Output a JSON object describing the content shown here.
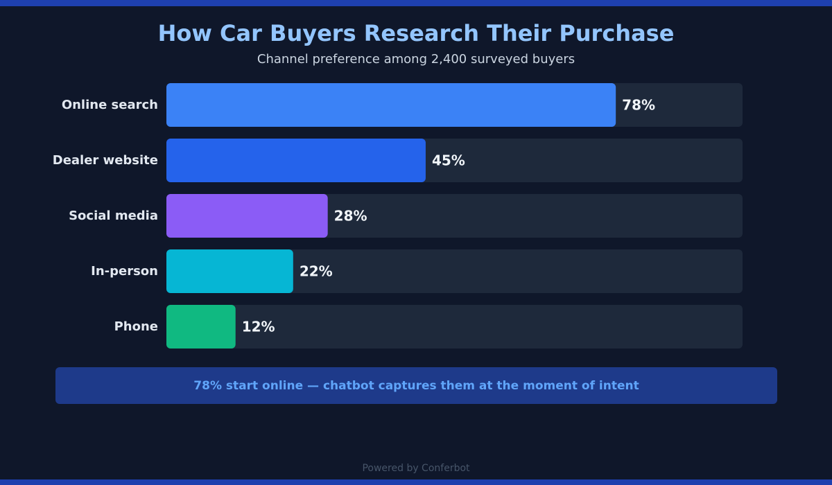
{
  "chart_data": {
    "type": "bar",
    "orientation": "horizontal",
    "title": "How Car Buyers Research Their Purchase",
    "subtitle": "Channel preference among 2,400 surveyed buyers",
    "categories": [
      "Online search",
      "Dealer website",
      "Social media",
      "In-person",
      "Phone"
    ],
    "values": [
      78,
      45,
      28,
      22,
      12
    ],
    "value_labels": [
      "78%",
      "45%",
      "28%",
      "22%",
      "12%"
    ],
    "colors": [
      "#3b82f6",
      "#2563eb",
      "#8b5cf6",
      "#06b6d4",
      "#10b981"
    ],
    "xlim": [
      0,
      100
    ],
    "grid": false,
    "legend": "none"
  },
  "callout": {
    "text": "78% start online — chatbot captures them at the moment of intent"
  },
  "footer": {
    "text": "Powered by Conferbot"
  },
  "colors": {
    "background": "#0f172a",
    "accent": "#1e40af",
    "track": "#1e293b",
    "title": "#93c5fd",
    "callout_bg": "#1e3a8a",
    "callout_text": "#60a5fa"
  }
}
